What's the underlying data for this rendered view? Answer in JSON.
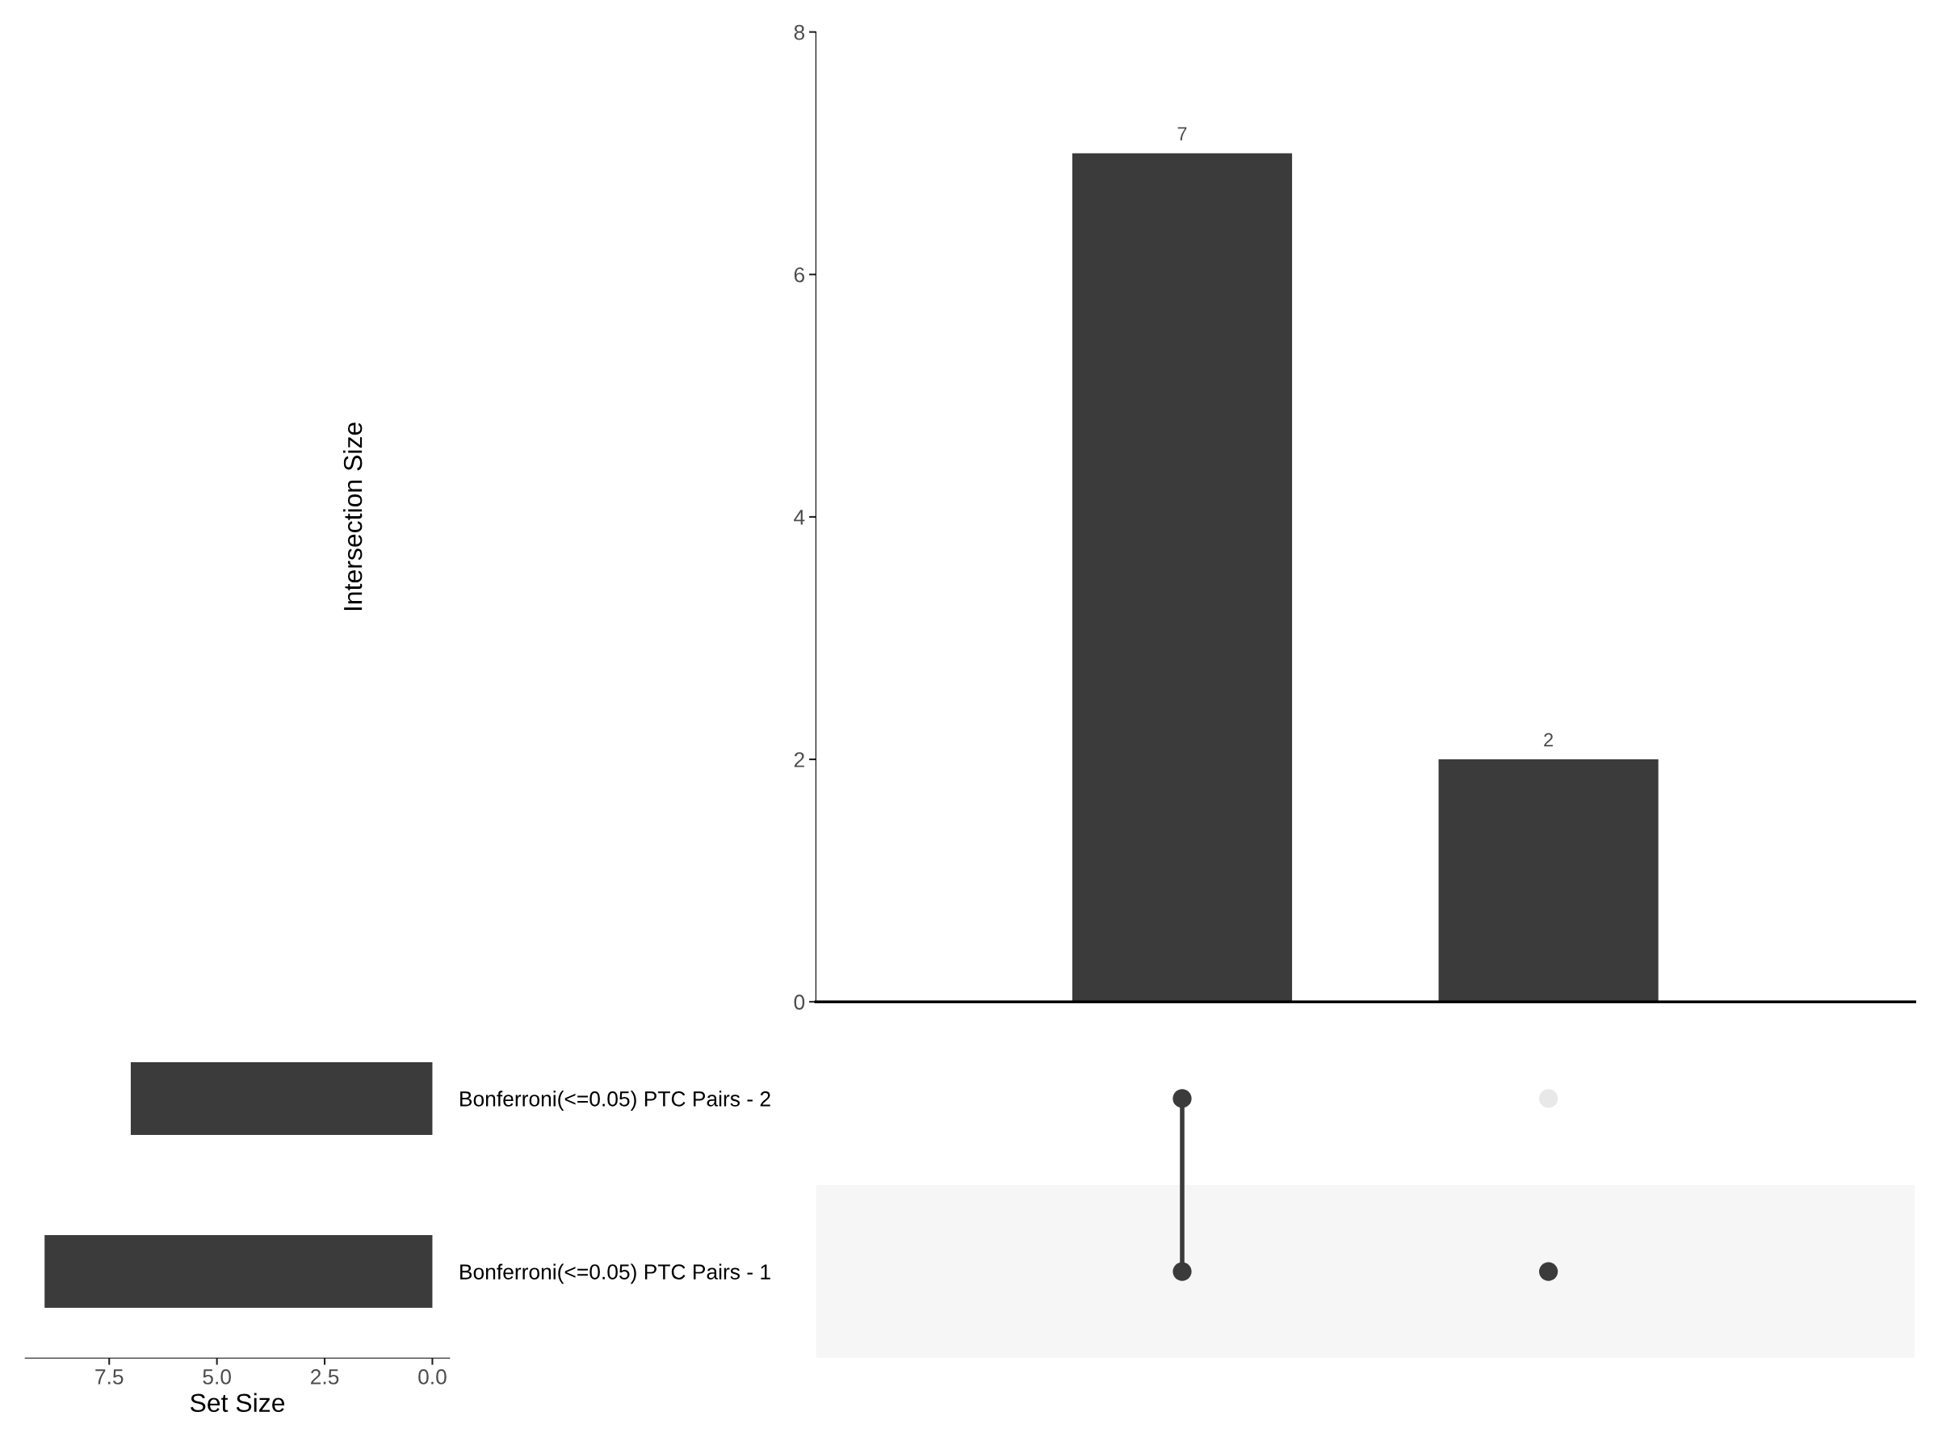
{
  "chart_data": [
    {
      "type": "bar",
      "ylabel": "Intersection Size",
      "categories": [
        null,
        null
      ],
      "values": [
        7,
        2
      ],
      "color": "#3b3b3b",
      "data_labels": true,
      "ylim": [
        0,
        8
      ],
      "yticks": [
        0,
        2,
        4,
        6,
        8
      ],
      "tick_labels": "y",
      "grid": false,
      "legend": false
    },
    {
      "type": "bar",
      "orientation": "horizontal",
      "xlabel": "Set Size",
      "categories": [
        "Bonferroni(<=0.05) PTC Pairs - 2",
        "Bonferroni(<=0.05) PTC Pairs - 1"
      ],
      "values": [
        7,
        9
      ],
      "color": "#3b3b3b",
      "xlim": [
        9.45,
        -0.4
      ],
      "xticks": [
        7.5,
        {
          "value": 5,
          "label": "5.0"
        },
        2.5,
        {
          "value": 0,
          "label": "0.0"
        }
      ],
      "grid": false,
      "legend": false
    }
  ]
}
